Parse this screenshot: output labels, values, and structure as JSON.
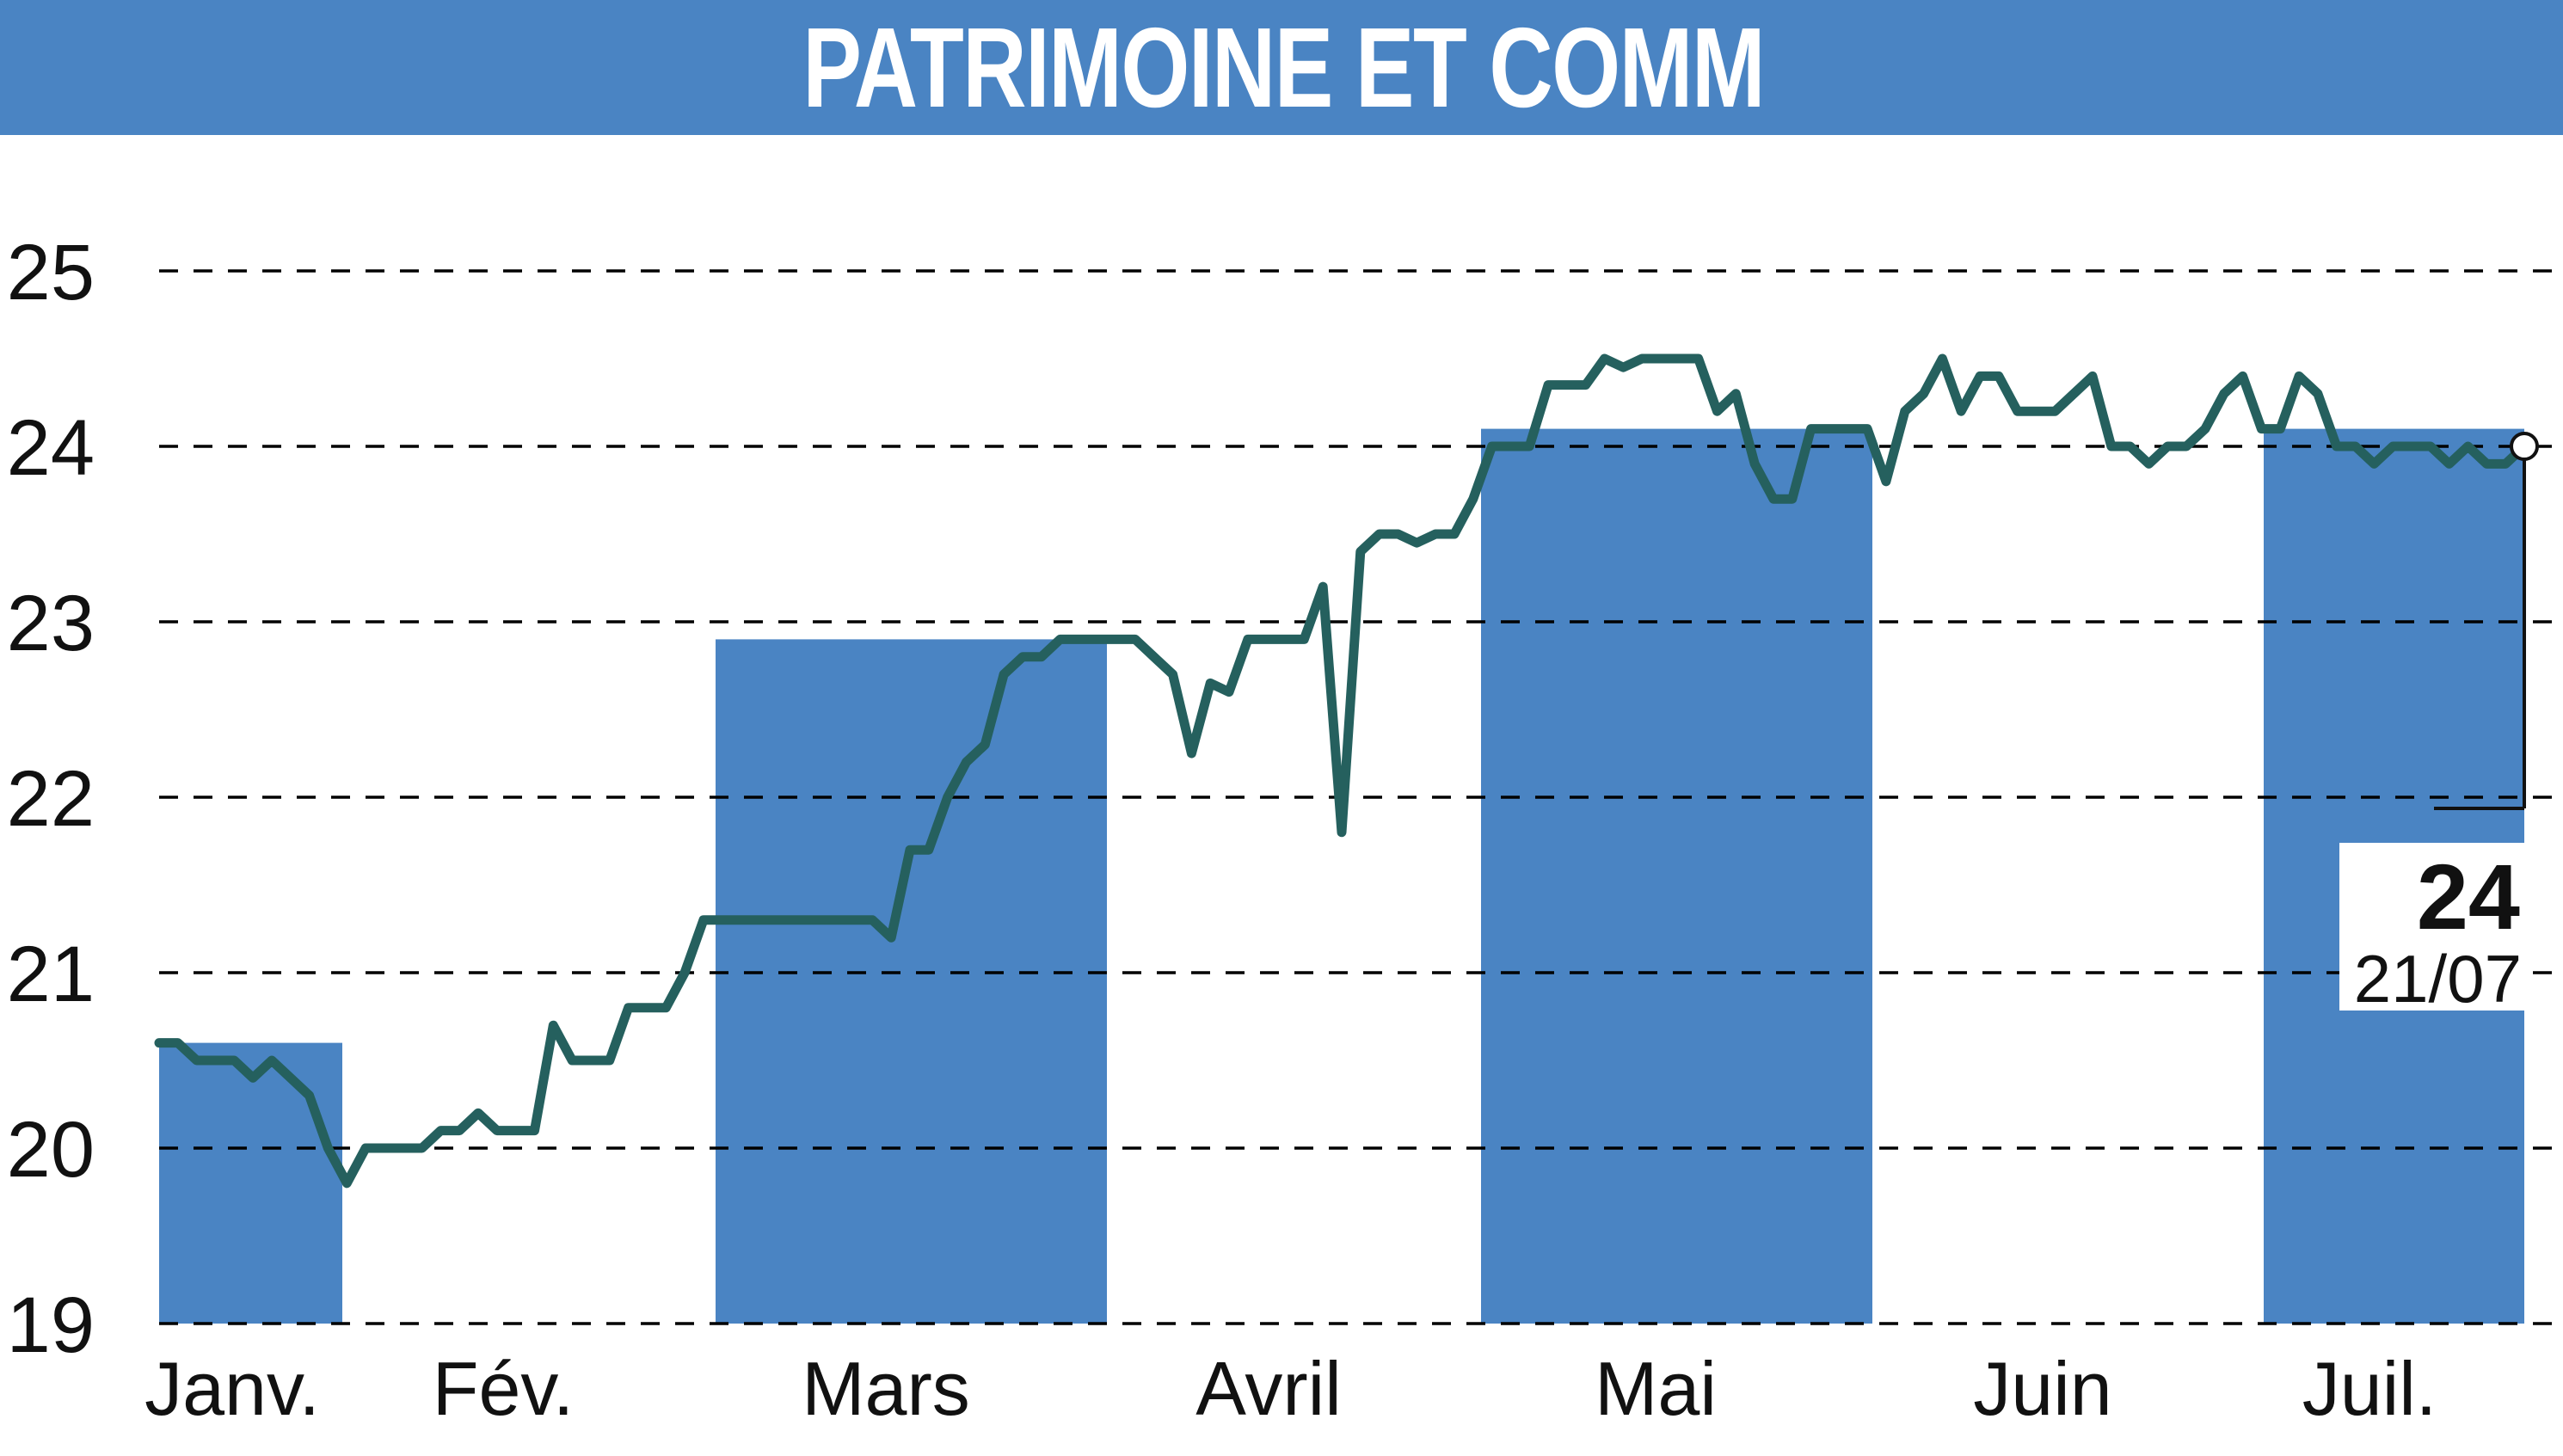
{
  "header": {
    "title": "PATRIMOINE ET COMM"
  },
  "colors": {
    "header": "#4a84c3",
    "band": "#4a84c3",
    "line": "#25605e",
    "grid": "#000000"
  },
  "chart_data": {
    "type": "line",
    "title": "PATRIMOINE ET COMM",
    "xlabel": "",
    "ylabel": "",
    "ylim": [
      19,
      25
    ],
    "yticks": [
      19,
      20,
      21,
      22,
      23,
      24,
      25
    ],
    "grid": true,
    "months": [
      "Janv.",
      "Fév.",
      "Mars",
      "Avril",
      "Mai",
      "Juin",
      "Juil."
    ],
    "series": [
      {
        "values": [
          20.6,
          20.6,
          20.5,
          20.5,
          20.5,
          20.4,
          20.5,
          20.4,
          20.3,
          20.0,
          19.8,
          20.0,
          20.0,
          20.0,
          20.0,
          20.1,
          20.1,
          20.2,
          20.1,
          20.1,
          20.1,
          20.7,
          20.5,
          20.5,
          20.5,
          20.8,
          20.8,
          20.8,
          21.0,
          21.3,
          21.3,
          21.3,
          21.3,
          21.3,
          21.3,
          21.3,
          21.3,
          21.3,
          21.3,
          21.2,
          21.7,
          21.7,
          22.0,
          22.2,
          22.3,
          22.7,
          22.8,
          22.8,
          22.9,
          22.9,
          22.9,
          22.9,
          22.9,
          22.8,
          22.7,
          22.25,
          22.65,
          22.6,
          22.9,
          22.9,
          22.9,
          22.9,
          23.2,
          21.8,
          23.4,
          23.5,
          23.5,
          23.45,
          23.5,
          23.5,
          23.7,
          24.0,
          24.0,
          24.0,
          24.35,
          24.35,
          24.35,
          24.5,
          24.45,
          24.5,
          24.5,
          24.5,
          24.5,
          24.2,
          24.3,
          23.9,
          23.7,
          23.7,
          24.1,
          24.1,
          24.1,
          24.1,
          23.8,
          24.2,
          24.3,
          24.5,
          24.2,
          24.4,
          24.4,
          24.2,
          24.2,
          24.2,
          24.3,
          24.4,
          24.0,
          24.0,
          23.9,
          24.0,
          24.0,
          24.1,
          24.3,
          24.4,
          24.1,
          24.1,
          24.4,
          24.3,
          24.0,
          24.0,
          23.9,
          24.0,
          24.0,
          24.0,
          23.9,
          24.0,
          23.9,
          23.9,
          24.0
        ]
      }
    ],
    "last_value": "24",
    "last_date": "21/07"
  }
}
